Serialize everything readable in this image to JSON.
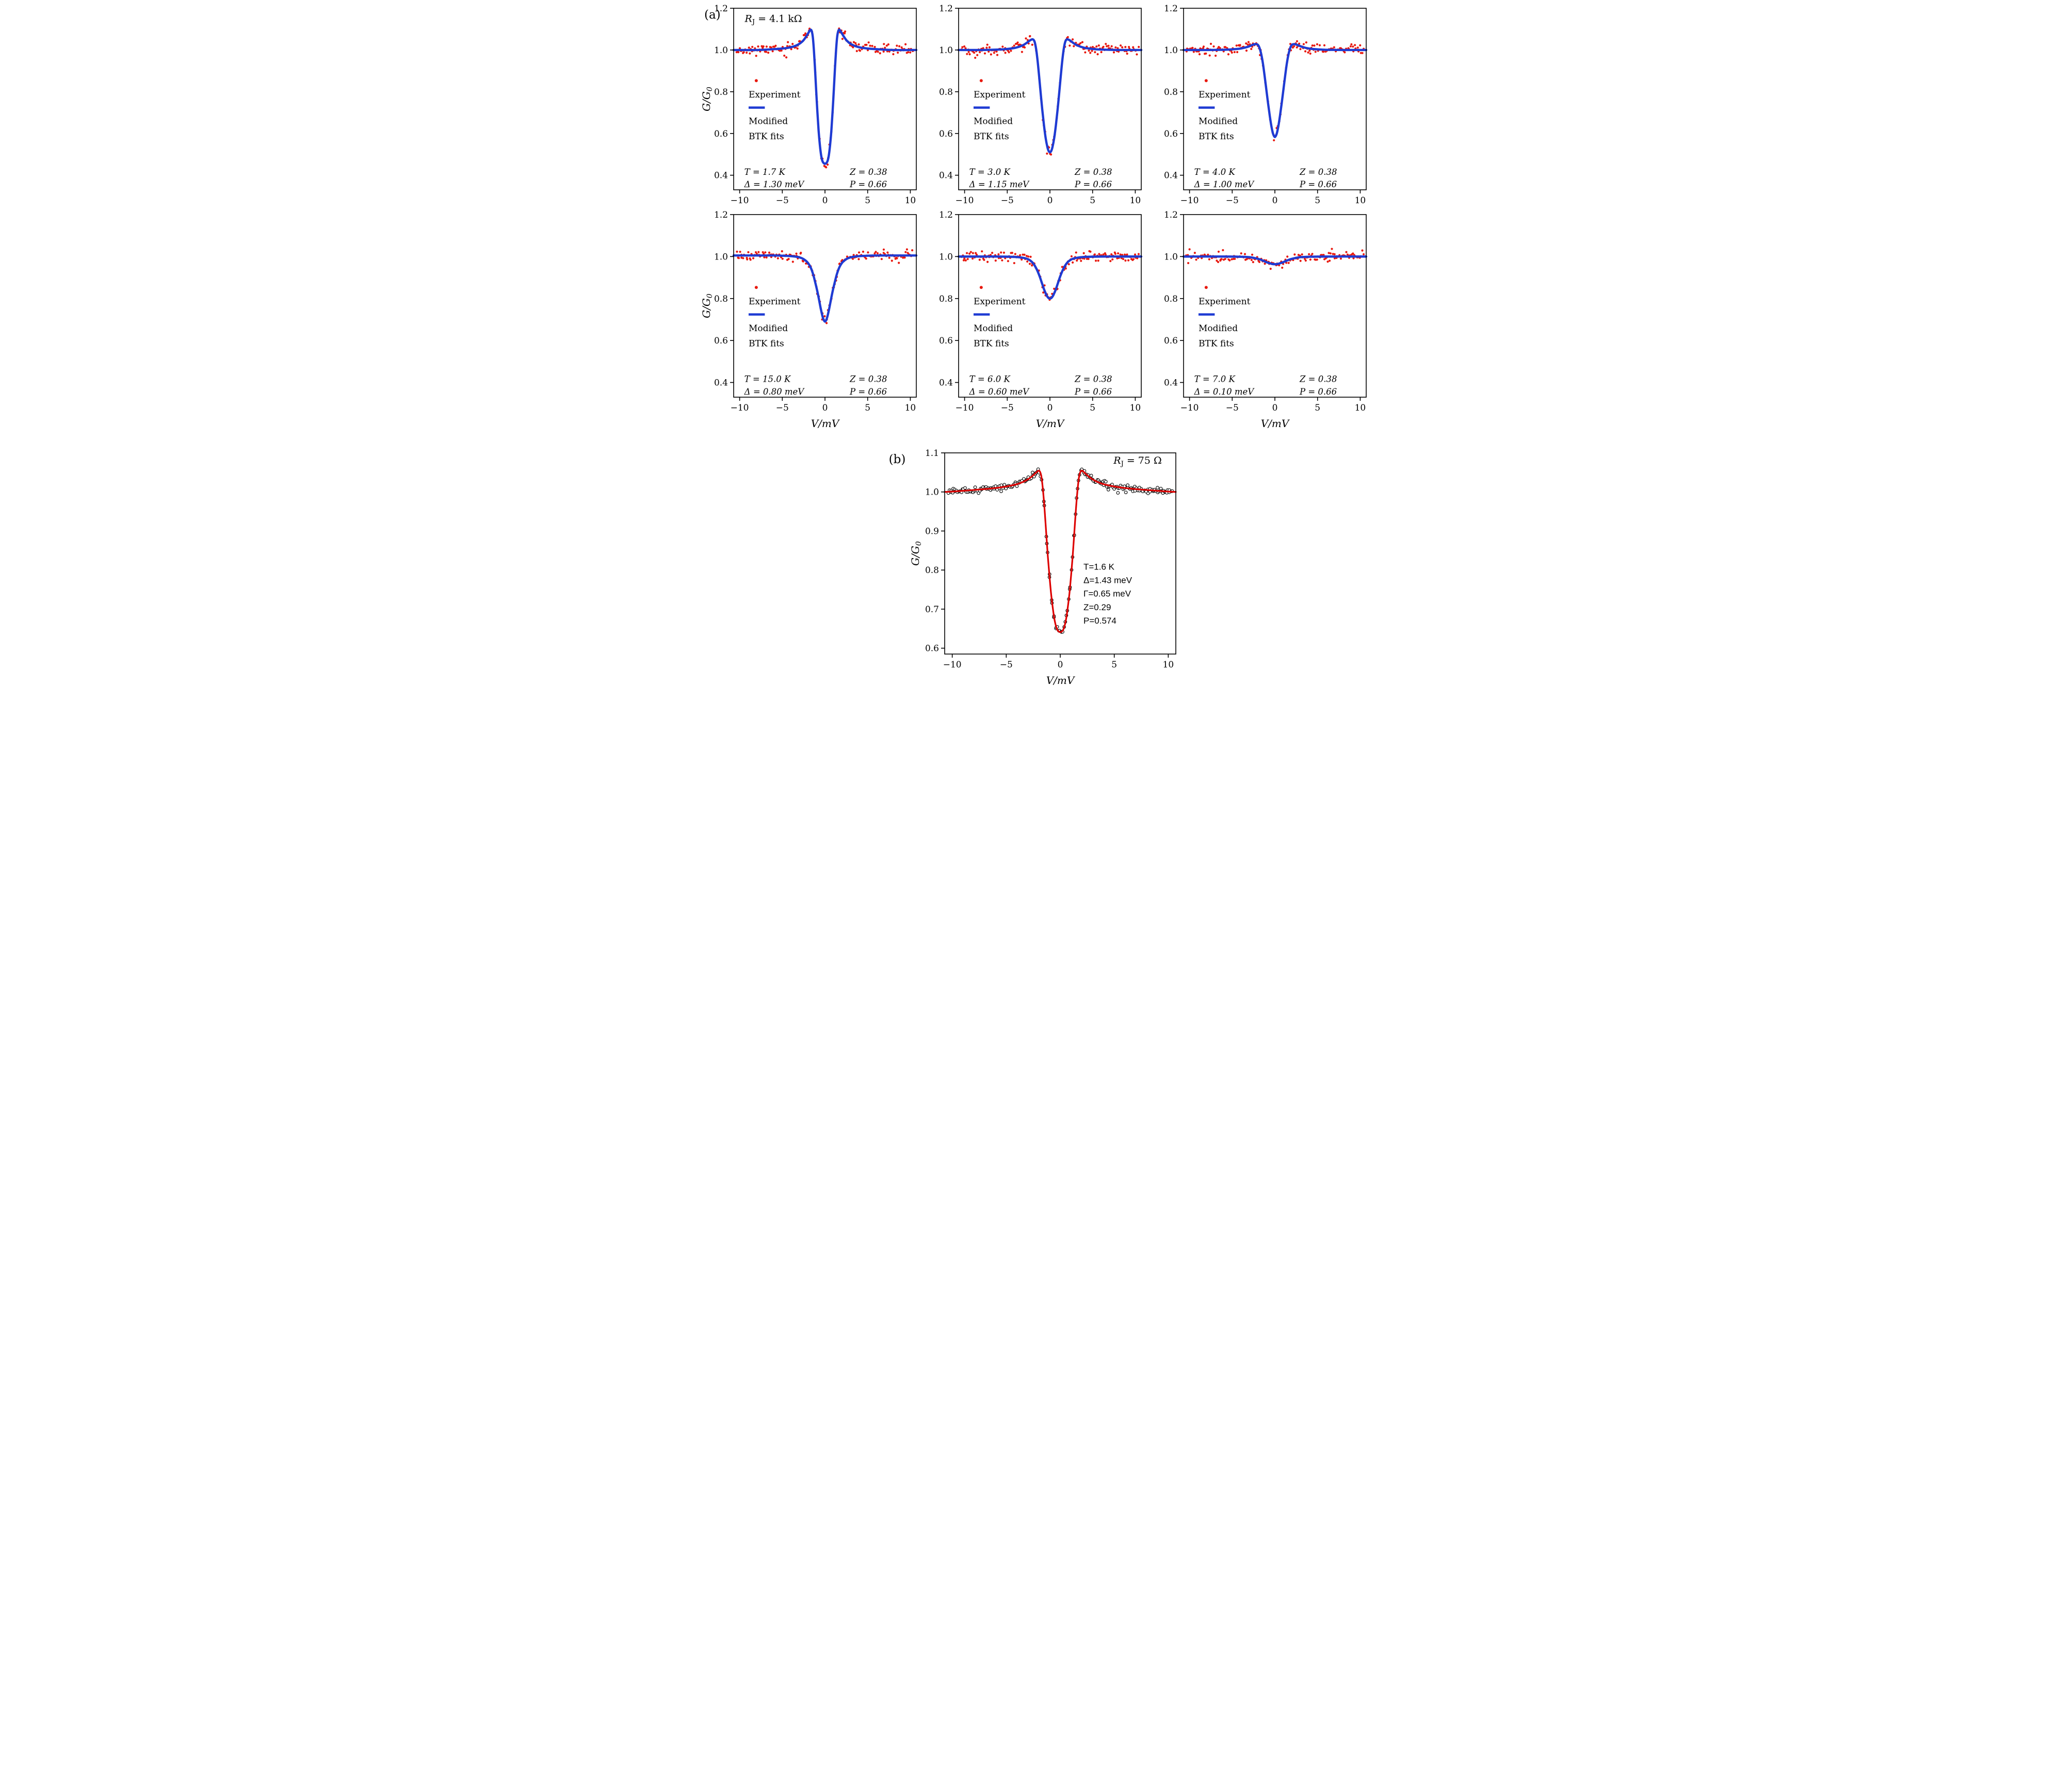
{
  "figure": {
    "panel_a_label": "(a)",
    "panel_b_label": "(b)"
  },
  "colors": {
    "experiment": "#e8190f",
    "fit": "#1f3bd3",
    "b_fit": "#dd0000",
    "b_experiment": "#000000",
    "frame": "#000000"
  },
  "legend": {
    "experiment": "Experiment",
    "fit_line1": "Modified",
    "fit_line2": "BTK fits"
  },
  "axis": {
    "xlabel": "V/mV",
    "ylabel_pre": "G/G",
    "ylabel_sub": "0"
  },
  "chart_data": [
    {
      "id": "a1",
      "layout": "top",
      "type": "line+scatter",
      "xlim": [
        -10.7,
        10.7
      ],
      "ylim": [
        0.33,
        1.2
      ],
      "xticks": [
        -10,
        -5,
        0,
        5,
        10
      ],
      "yticks": [
        0.4,
        0.6,
        0.8,
        1.0,
        1.2
      ],
      "show_xlabel": false,
      "show_ylabel": true,
      "legend": true,
      "corner": {
        "pre": "R",
        "sub": "J",
        "post": " = 4.1 kΩ"
      },
      "annotations": {
        "T": "T = 1.7 K",
        "delta": "Δ = 1.30 meV",
        "Z": "Z = 0.38",
        "P": "P = 0.66"
      },
      "symmetric": true,
      "fit_half": [
        [
          -10.7,
          1.0
        ],
        [
          -8,
          1.0
        ],
        [
          -6,
          1.004
        ],
        [
          -5,
          1.007
        ],
        [
          -4,
          1.013
        ],
        [
          -3.2,
          1.025
        ],
        [
          -2.6,
          1.043
        ],
        [
          -2.2,
          1.065
        ],
        [
          -1.9,
          1.085
        ],
        [
          -1.7,
          1.097
        ],
        [
          -1.55,
          1.09
        ],
        [
          -1.42,
          1.06
        ],
        [
          -1.3,
          1.0
        ],
        [
          -1.18,
          0.92
        ],
        [
          -1.05,
          0.82
        ],
        [
          -0.9,
          0.71
        ],
        [
          -0.75,
          0.615
        ],
        [
          -0.6,
          0.545
        ],
        [
          -0.45,
          0.495
        ],
        [
          -0.3,
          0.468
        ],
        [
          -0.15,
          0.458
        ],
        [
          0,
          0.455
        ]
      ],
      "scatter": {
        "n": 165,
        "sigma": 0.012,
        "seed": 11,
        "style": "filled"
      }
    },
    {
      "id": "a2",
      "layout": "top",
      "type": "line+scatter",
      "xlim": [
        -10.7,
        10.7
      ],
      "ylim": [
        0.33,
        1.2
      ],
      "xticks": [
        -10,
        -5,
        0,
        5,
        10
      ],
      "yticks": [
        0.4,
        0.6,
        0.8,
        1.0,
        1.2
      ],
      "show_xlabel": false,
      "show_ylabel": false,
      "legend": true,
      "annotations": {
        "T": "T = 3.0 K",
        "delta": "Δ = 1.15 meV",
        "Z": "Z = 0.38",
        "P": "P = 0.66"
      },
      "symmetric": true,
      "fit_half": [
        [
          -10.7,
          1.0
        ],
        [
          -8,
          1.0
        ],
        [
          -6,
          1.002
        ],
        [
          -5,
          1.005
        ],
        [
          -4,
          1.011
        ],
        [
          -3.2,
          1.022
        ],
        [
          -2.7,
          1.035
        ],
        [
          -2.3,
          1.047
        ],
        [
          -2.0,
          1.051
        ],
        [
          -1.8,
          1.04
        ],
        [
          -1.62,
          1.005
        ],
        [
          -1.45,
          0.95
        ],
        [
          -1.28,
          0.88
        ],
        [
          -1.1,
          0.8
        ],
        [
          -0.9,
          0.715
        ],
        [
          -0.7,
          0.64
        ],
        [
          -0.5,
          0.578
        ],
        [
          -0.3,
          0.535
        ],
        [
          -0.15,
          0.516
        ],
        [
          0,
          0.51
        ]
      ],
      "scatter": {
        "n": 165,
        "sigma": 0.012,
        "seed": 22,
        "style": "filled"
      }
    },
    {
      "id": "a3",
      "layout": "top",
      "type": "line+scatter",
      "xlim": [
        -10.7,
        10.7
      ],
      "ylim": [
        0.33,
        1.2
      ],
      "xticks": [
        -10,
        -5,
        0,
        5,
        10
      ],
      "yticks": [
        0.4,
        0.6,
        0.8,
        1.0,
        1.2
      ],
      "show_xlabel": false,
      "show_ylabel": false,
      "legend": true,
      "annotations": {
        "T": "T = 4.0 K",
        "delta": "Δ = 1.00 meV",
        "Z": "Z = 0.38",
        "P": "P = 0.66"
      },
      "symmetric": true,
      "fit_half": [
        [
          -10.7,
          1.0
        ],
        [
          -8,
          1.0
        ],
        [
          -6,
          1.001
        ],
        [
          -5,
          1.003
        ],
        [
          -4,
          1.007
        ],
        [
          -3.2,
          1.015
        ],
        [
          -2.7,
          1.023
        ],
        [
          -2.3,
          1.028
        ],
        [
          -2.0,
          1.025
        ],
        [
          -1.8,
          1.01
        ],
        [
          -1.6,
          0.98
        ],
        [
          -1.4,
          0.935
        ],
        [
          -1.2,
          0.875
        ],
        [
          -1.0,
          0.81
        ],
        [
          -0.8,
          0.745
        ],
        [
          -0.6,
          0.685
        ],
        [
          -0.4,
          0.633
        ],
        [
          -0.2,
          0.597
        ],
        [
          0,
          0.583
        ]
      ],
      "scatter": {
        "n": 165,
        "sigma": 0.012,
        "seed": 33,
        "style": "filled"
      }
    },
    {
      "id": "a4",
      "layout": "bottom",
      "type": "line+scatter",
      "xlim": [
        -10.7,
        10.7
      ],
      "ylim": [
        0.33,
        1.2
      ],
      "xticks": [
        -10,
        -5,
        0,
        5,
        10
      ],
      "yticks": [
        0.4,
        0.6,
        0.8,
        1.0,
        1.2
      ],
      "show_xlabel": true,
      "show_ylabel": true,
      "legend": true,
      "annotations": {
        "T": "T = 15.0 K",
        "delta": "Δ = 0.80 meV",
        "Z": "Z = 0.38",
        "P": "P = 0.66"
      },
      "symmetric": true,
      "fit_half": [
        [
          -10.7,
          1.005
        ],
        [
          -8,
          1.005
        ],
        [
          -6,
          1.005
        ],
        [
          -5,
          1.004
        ],
        [
          -4,
          1.002
        ],
        [
          -3.2,
          0.998
        ],
        [
          -2.7,
          0.992
        ],
        [
          -2.3,
          0.982
        ],
        [
          -2.0,
          0.97
        ],
        [
          -1.7,
          0.95
        ],
        [
          -1.4,
          0.917
        ],
        [
          -1.15,
          0.878
        ],
        [
          -0.9,
          0.835
        ],
        [
          -0.7,
          0.795
        ],
        [
          -0.5,
          0.753
        ],
        [
          -0.3,
          0.717
        ],
        [
          -0.15,
          0.698
        ],
        [
          0,
          0.69
        ]
      ],
      "scatter": {
        "n": 165,
        "sigma": 0.011,
        "seed": 44,
        "style": "filled"
      }
    },
    {
      "id": "a5",
      "layout": "bottom",
      "type": "line+scatter",
      "xlim": [
        -10.7,
        10.7
      ],
      "ylim": [
        0.33,
        1.2
      ],
      "xticks": [
        -10,
        -5,
        0,
        5,
        10
      ],
      "yticks": [
        0.4,
        0.6,
        0.8,
        1.0,
        1.2
      ],
      "show_xlabel": true,
      "show_ylabel": false,
      "legend": true,
      "annotations": {
        "T": "T = 6.0 K",
        "delta": "Δ = 0.60 meV",
        "Z": "Z = 0.38",
        "P": "P = 0.66"
      },
      "symmetric": true,
      "fit_half": [
        [
          -10.7,
          1.0
        ],
        [
          -8,
          1.0
        ],
        [
          -6,
          1.0
        ],
        [
          -4,
          0.998
        ],
        [
          -3,
          0.993
        ],
        [
          -2.5,
          0.986
        ],
        [
          -2.1,
          0.974
        ],
        [
          -1.8,
          0.958
        ],
        [
          -1.5,
          0.935
        ],
        [
          -1.2,
          0.905
        ],
        [
          -0.95,
          0.875
        ],
        [
          -0.7,
          0.845
        ],
        [
          -0.5,
          0.825
        ],
        [
          -0.3,
          0.809
        ],
        [
          -0.15,
          0.802
        ],
        [
          0,
          0.8
        ]
      ],
      "scatter": {
        "n": 165,
        "sigma": 0.012,
        "seed": 55,
        "style": "filled"
      }
    },
    {
      "id": "a6",
      "layout": "bottom",
      "type": "line+scatter",
      "xlim": [
        -10.7,
        10.7
      ],
      "ylim": [
        0.33,
        1.2
      ],
      "xticks": [
        -10,
        -5,
        0,
        5,
        10
      ],
      "yticks": [
        0.4,
        0.6,
        0.8,
        1.0,
        1.2
      ],
      "show_xlabel": true,
      "show_ylabel": false,
      "legend": true,
      "annotations": {
        "T": "T = 7.0 K",
        "delta": "Δ = 0.10 meV",
        "Z": "Z = 0.38",
        "P": "P = 0.66"
      },
      "symmetric": true,
      "fit_half": [
        [
          -10.7,
          1.0
        ],
        [
          -6,
          1.0
        ],
        [
          -4,
          0.999
        ],
        [
          -3,
          0.997
        ],
        [
          -2.4,
          0.993
        ],
        [
          -1.8,
          0.987
        ],
        [
          -1.3,
          0.979
        ],
        [
          -0.9,
          0.972
        ],
        [
          -0.6,
          0.968
        ],
        [
          -0.3,
          0.9645
        ],
        [
          0,
          0.9635
        ]
      ],
      "scatter": {
        "n": 165,
        "sigma": 0.01,
        "seed": 66,
        "style": "filled"
      }
    },
    {
      "id": "b",
      "layout": "b",
      "type": "line+scatter",
      "xlim": [
        -10.7,
        10.7
      ],
      "ylim": [
        0.585,
        1.1
      ],
      "xticks": [
        -10,
        -5,
        0,
        5,
        10
      ],
      "yticks": [
        0.6,
        0.7,
        0.8,
        0.9,
        1.0,
        1.1
      ],
      "show_xlabel": true,
      "show_ylabel": true,
      "legend": false,
      "corner": {
        "pre": "R",
        "sub": "J",
        "post": " = 75 Ω"
      },
      "params": [
        "T=1.6 K",
        "Δ=1.43 meV",
        "Γ=0.65 meV",
        "Z=0.29",
        "P=0.574"
      ],
      "symmetric": true,
      "fit_half": [
        [
          -10.7,
          1.0
        ],
        [
          -10,
          1.001
        ],
        [
          -8,
          1.005
        ],
        [
          -6,
          1.01
        ],
        [
          -5,
          1.014
        ],
        [
          -4,
          1.02
        ],
        [
          -3.2,
          1.029
        ],
        [
          -2.7,
          1.038
        ],
        [
          -2.3,
          1.048
        ],
        [
          -2.05,
          1.054
        ],
        [
          -1.9,
          1.053
        ],
        [
          -1.75,
          1.04
        ],
        [
          -1.6,
          1.005
        ],
        [
          -1.45,
          0.955
        ],
        [
          -1.3,
          0.895
        ],
        [
          -1.15,
          0.835
        ],
        [
          -1.0,
          0.785
        ],
        [
          -0.85,
          0.74
        ],
        [
          -0.7,
          0.705
        ],
        [
          -0.55,
          0.676
        ],
        [
          -0.4,
          0.657
        ],
        [
          -0.25,
          0.646
        ],
        [
          -0.1,
          0.642
        ],
        [
          0,
          0.641
        ]
      ],
      "scatter": {
        "n": 210,
        "sigma": 0.004,
        "seed": 77,
        "style": "open"
      }
    }
  ]
}
